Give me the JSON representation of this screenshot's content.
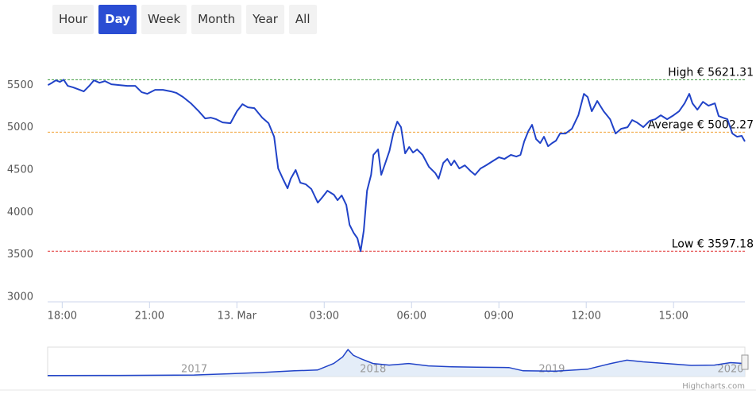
{
  "range_selector": {
    "buttons": [
      "Hour",
      "Day",
      "Week",
      "Month",
      "Year",
      "All"
    ],
    "selected": 1
  },
  "chart_data": {
    "type": "line",
    "color": "#2143c8",
    "grid": false,
    "x": [
      17.51,
      17.65,
      17.78,
      17.92,
      18.05,
      18.19,
      18.38,
      18.6,
      18.74,
      18.93,
      19.09,
      19.28,
      19.47,
      19.69,
      19.96,
      20.24,
      20.51,
      20.73,
      20.92,
      21.19,
      21.46,
      21.74,
      21.93,
      22.15,
      22.42,
      22.69,
      22.91,
      23.1,
      23.29,
      23.51,
      23.78,
      24.0,
      24.19,
      24.38,
      24.6,
      24.87,
      25.09,
      25.28,
      25.42,
      25.58,
      25.74,
      25.85,
      26.02,
      26.18,
      26.37,
      26.56,
      26.78,
      26.94,
      27.11,
      27.33,
      27.46,
      27.6,
      27.76,
      27.87,
      28.01,
      28.14,
      28.25,
      28.36,
      28.47,
      28.61,
      28.69,
      28.85,
      28.96,
      29.1,
      29.24,
      29.37,
      29.51,
      29.64,
      29.78,
      29.92,
      30.05,
      30.19,
      30.38,
      30.6,
      30.82,
      30.93,
      31.09,
      31.23,
      31.36,
      31.47,
      31.64,
      31.83,
      32.02,
      32.18,
      32.37,
      32.56,
      32.78,
      33.0,
      33.19,
      33.41,
      33.6,
      33.74,
      33.87,
      34.01,
      34.14,
      34.28,
      34.42,
      34.55,
      34.69,
      34.83,
      34.96,
      35.1,
      35.29,
      35.51,
      35.73,
      35.92,
      36.05,
      36.19,
      36.38,
      36.6,
      36.82,
      37.01,
      37.2,
      37.42,
      37.58,
      37.74,
      37.96,
      38.18,
      38.37,
      38.56,
      38.78,
      39.0,
      39.19,
      39.38,
      39.54,
      39.65,
      39.82,
      40.01,
      40.2,
      40.42,
      40.55,
      40.69,
      40.85,
      41.02,
      41.18,
      41.34,
      41.45
    ],
    "values": [
      5558,
      5586,
      5615,
      5596,
      5621,
      5549,
      5530,
      5502,
      5483,
      5549,
      5615,
      5586,
      5605,
      5568,
      5558,
      5549,
      5549,
      5474,
      5455,
      5502,
      5502,
      5483,
      5465,
      5418,
      5343,
      5249,
      5165,
      5174,
      5155,
      5118,
      5108,
      5249,
      5333,
      5296,
      5287,
      5174,
      5108,
      4949,
      4574,
      4453,
      4340,
      4453,
      4556,
      4406,
      4387,
      4331,
      4171,
      4237,
      4312,
      4265,
      4200,
      4256,
      4143,
      3909,
      3815,
      3750,
      3597,
      3843,
      4312,
      4499,
      4734,
      4799,
      4499,
      4640,
      4780,
      4987,
      5127,
      5062,
      4752,
      4827,
      4762,
      4799,
      4734,
      4593,
      4518,
      4453,
      4640,
      4687,
      4612,
      4668,
      4574,
      4612,
      4546,
      4499,
      4574,
      4612,
      4659,
      4706,
      4687,
      4734,
      4715,
      4734,
      4893,
      5015,
      5090,
      4921,
      4874,
      4949,
      4837,
      4874,
      4902,
      4987,
      4987,
      5043,
      5202,
      5455,
      5418,
      5249,
      5371,
      5249,
      5155,
      4987,
      5043,
      5062,
      5146,
      5118,
      5062,
      5137,
      5155,
      5202,
      5155,
      5202,
      5249,
      5343,
      5455,
      5343,
      5268,
      5361,
      5315,
      5343,
      5193,
      5174,
      5155,
      4987,
      4949,
      4959,
      4893
    ],
    "xlim": [
      17.5,
      41.45
    ],
    "xticks": [
      {
        "value": 18,
        "label": "18:00"
      },
      {
        "value": 21,
        "label": "21:00"
      },
      {
        "value": 24,
        "label": "13. Mar"
      },
      {
        "value": 27,
        "label": "03:00"
      },
      {
        "value": 30,
        "label": "06:00"
      },
      {
        "value": 33,
        "label": "09:00"
      },
      {
        "value": 36,
        "label": "12:00"
      },
      {
        "value": 39,
        "label": "15:00"
      }
    ],
    "ylim": [
      3000,
      6000
    ],
    "yticks": [
      3000,
      3500,
      4000,
      4500,
      5000,
      5500
    ],
    "plot_lines": [
      {
        "value": 5621.31,
        "label": "High € 5621.31",
        "color": "#3a9a3a"
      },
      {
        "value": 5002.27,
        "label": "Average € 5002.27",
        "color": "#f0a030"
      },
      {
        "value": 3597.18,
        "label": "Low € 3597.18",
        "color": "#e03030"
      }
    ],
    "navigator": {
      "color": "#2143c8",
      "x": [
        2016.18,
        2016.58,
        2017.0,
        2017.2,
        2017.38,
        2017.56,
        2017.69,
        2017.78,
        2017.83,
        2017.86,
        2017.89,
        2017.93,
        2018.0,
        2018.09,
        2018.2,
        2018.31,
        2018.44,
        2018.58,
        2018.76,
        2018.84,
        2019.02,
        2019.2,
        2019.33,
        2019.42,
        2019.51,
        2019.64,
        2019.78,
        2019.91,
        2020.0,
        2020.08
      ],
      "values": [
        600,
        700,
        900,
        1700,
        2500,
        3500,
        4000,
        8000,
        12000,
        16500,
        13000,
        11000,
        8000,
        7000,
        8000,
        6500,
        6000,
        5700,
        5500,
        3500,
        3300,
        4500,
        8000,
        10000,
        9000,
        8000,
        6800,
        7000,
        8500,
        8000
      ],
      "xlim": [
        2016.18,
        2020.08
      ],
      "ylim": [
        0,
        18000
      ],
      "xticks": [
        2017,
        2018,
        2019,
        2020
      ]
    },
    "credits": "Highcharts.com"
  }
}
